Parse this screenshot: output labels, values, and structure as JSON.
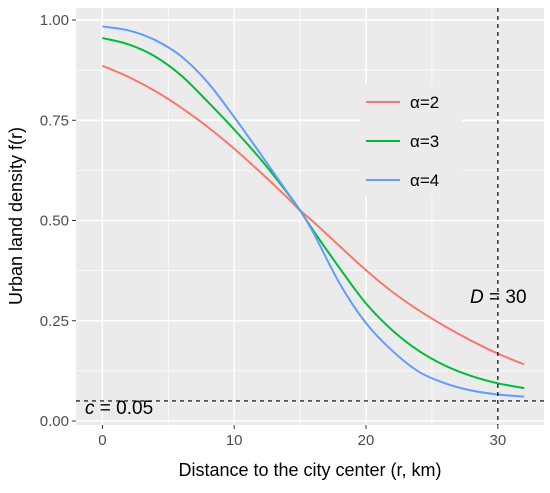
{
  "chart_data": {
    "type": "line",
    "xlabel": "Distance to the city center (r, km)",
    "ylabel": "Urban land density f(r)",
    "xlim": [
      -2,
      33.5
    ],
    "ylim": [
      -0.01,
      1.03
    ],
    "x_ticks": [
      0,
      10,
      20,
      30
    ],
    "x_tick_labels": [
      "0",
      "10",
      "20",
      "30"
    ],
    "y_ticks": [
      0.0,
      0.25,
      0.5,
      0.75,
      1.0
    ],
    "y_tick_labels": [
      "0.00",
      "0.25",
      "0.50",
      "0.75",
      "1.00"
    ],
    "grid": true,
    "legend_position": "right",
    "series": [
      {
        "name": "α=2",
        "color": "#F8766D",
        "x": [
          0,
          2,
          4,
          6,
          8,
          10,
          12,
          14,
          15,
          16,
          18,
          20,
          22,
          24,
          26,
          28,
          30,
          32
        ],
        "y": [
          0.886,
          0.858,
          0.823,
          0.781,
          0.733,
          0.679,
          0.62,
          0.558,
          0.525,
          0.497,
          0.436,
          0.376,
          0.322,
          0.276,
          0.236,
          0.2,
          0.168,
          0.141
        ]
      },
      {
        "name": "α=3",
        "color": "#00BA38",
        "x": [
          0,
          2,
          4,
          6,
          8,
          10,
          12,
          14,
          15,
          16,
          18,
          20,
          22,
          24,
          26,
          28,
          30,
          32
        ],
        "y": [
          0.955,
          0.939,
          0.909,
          0.861,
          0.796,
          0.727,
          0.653,
          0.57,
          0.525,
          0.475,
          0.381,
          0.293,
          0.226,
          0.175,
          0.138,
          0.112,
          0.094,
          0.082
        ]
      },
      {
        "name": "α=4",
        "color": "#619CFF",
        "x": [
          0,
          2,
          4,
          6,
          8,
          10,
          12,
          14,
          15,
          16,
          18,
          20,
          22,
          24,
          26,
          28,
          30,
          32
        ],
        "y": [
          0.984,
          0.974,
          0.95,
          0.909,
          0.844,
          0.758,
          0.666,
          0.572,
          0.525,
          0.47,
          0.343,
          0.244,
          0.175,
          0.123,
          0.094,
          0.076,
          0.066,
          0.061
        ]
      }
    ],
    "reference_lines": [
      {
        "orientation": "vertical",
        "value": 30,
        "label": "D = 30",
        "label_italic": "D",
        "label_rest": " = 30"
      },
      {
        "orientation": "horizontal",
        "value": 0.05,
        "label": "c = 0.05",
        "label_italic": "c",
        "label_rest": " = 0.05"
      }
    ],
    "panel_background": "#EBEBEB",
    "grid_color": "#FFFFFF"
  }
}
